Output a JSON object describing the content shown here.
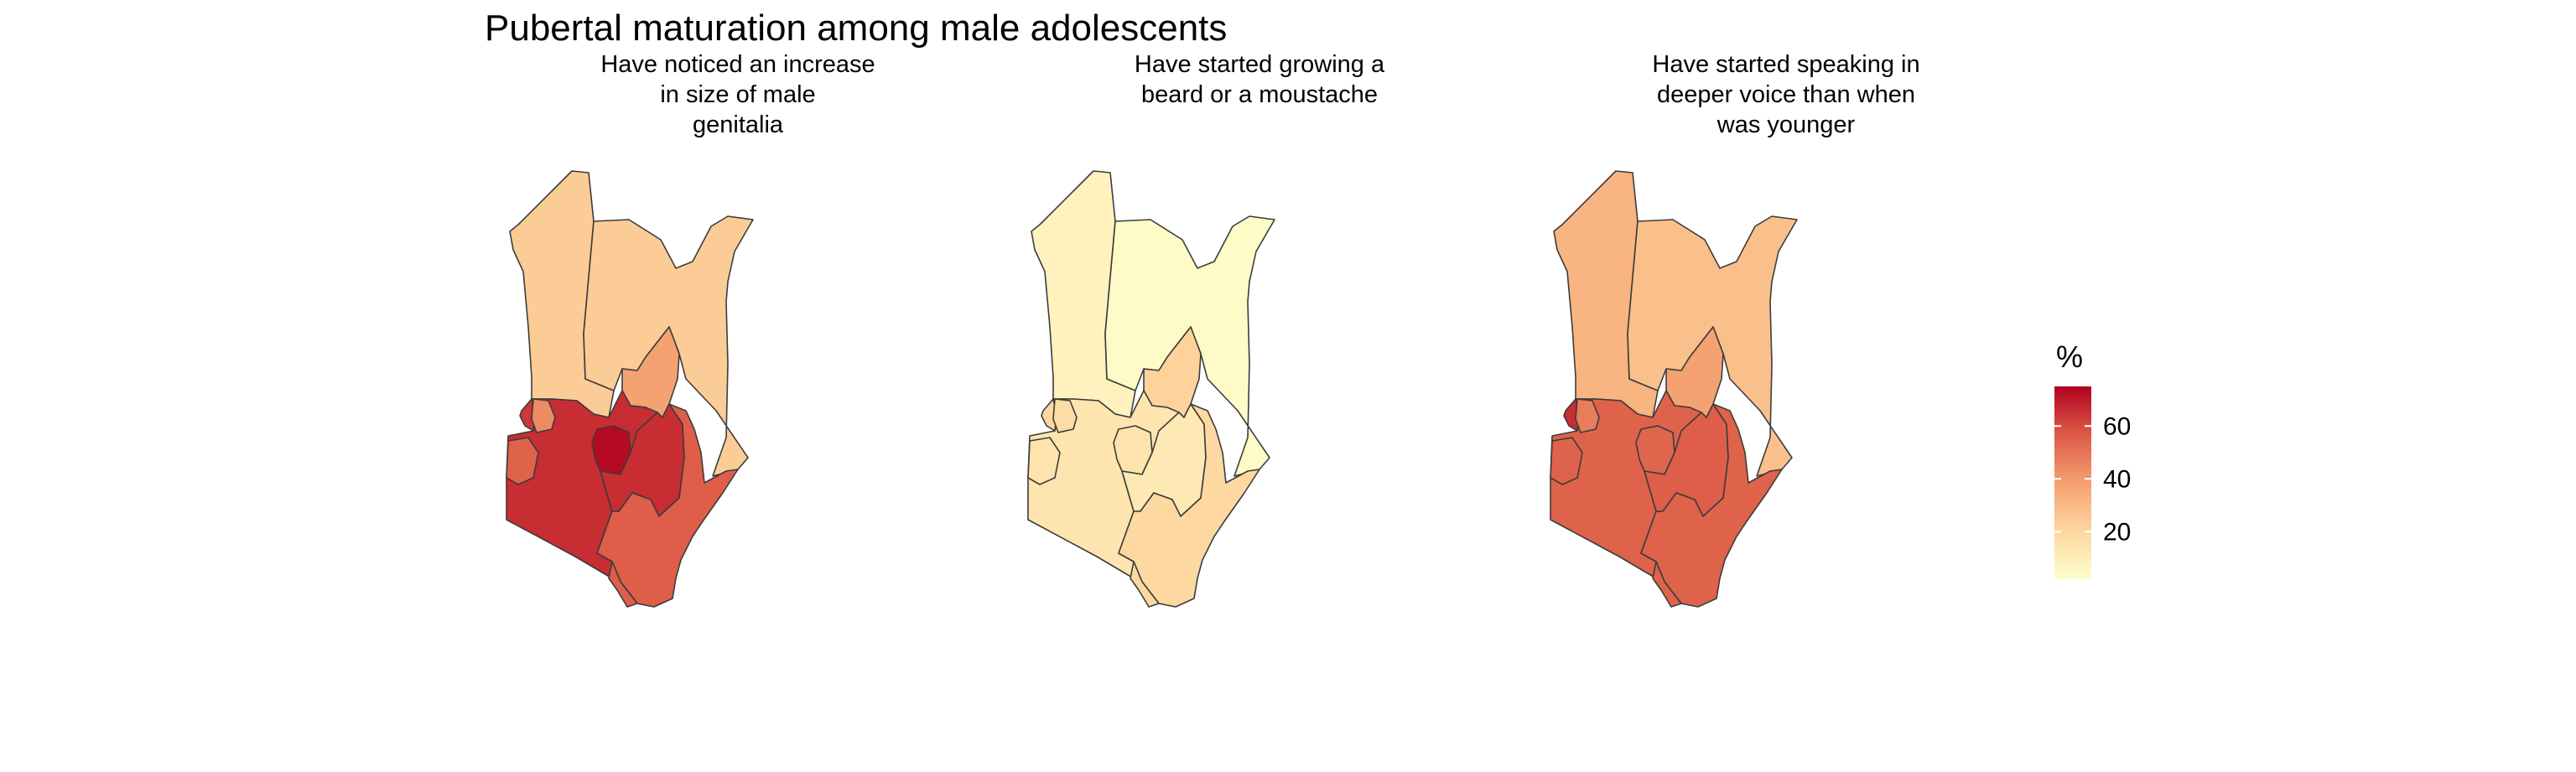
{
  "chart_data": {
    "type": "choropleth",
    "title": "Pubertal maturation among male adolescents",
    "panels": [
      {
        "title": [
          "Have noticed an increase",
          "in size of male",
          "genitalia"
        ],
        "values": {
          "north_west": 24,
          "north_east": 24,
          "east": 38,
          "rift_valley": 66,
          "western": 64,
          "nyanza_a": 44,
          "nyanza_b": 55,
          "central": 73,
          "eastern_south": 66,
          "coast": 56,
          "coast_south": 56
        }
      },
      {
        "title": [
          "Have started growing a",
          "beard or a moustache"
        ],
        "values": {
          "north_west": 8,
          "north_east": 4,
          "east": 22,
          "rift_valley": 14,
          "western": 20,
          "nyanza_a": 18,
          "nyanza_b": 15,
          "central": 15,
          "eastern_south": 12,
          "coast": 20,
          "coast_south": 20
        }
      },
      {
        "title": [
          "Have started speaking in",
          "deeper voice than when",
          "was younger"
        ],
        "values": {
          "north_west": 32,
          "north_east": 28,
          "east": 38,
          "rift_valley": 55,
          "western": 66,
          "nyanza_a": 48,
          "nyanza_b": 55,
          "central": 54,
          "eastern_south": 56,
          "coast": 55,
          "coast_south": 55
        }
      }
    ],
    "legend": {
      "title": "%",
      "ticks": [
        20,
        40,
        60
      ],
      "range": [
        2,
        75
      ],
      "colors": [
        "#ffffcc",
        "#fed7a0",
        "#f4a070",
        "#dd5b47",
        "#b1001f"
      ],
      "position": "right"
    },
    "grid": false
  }
}
